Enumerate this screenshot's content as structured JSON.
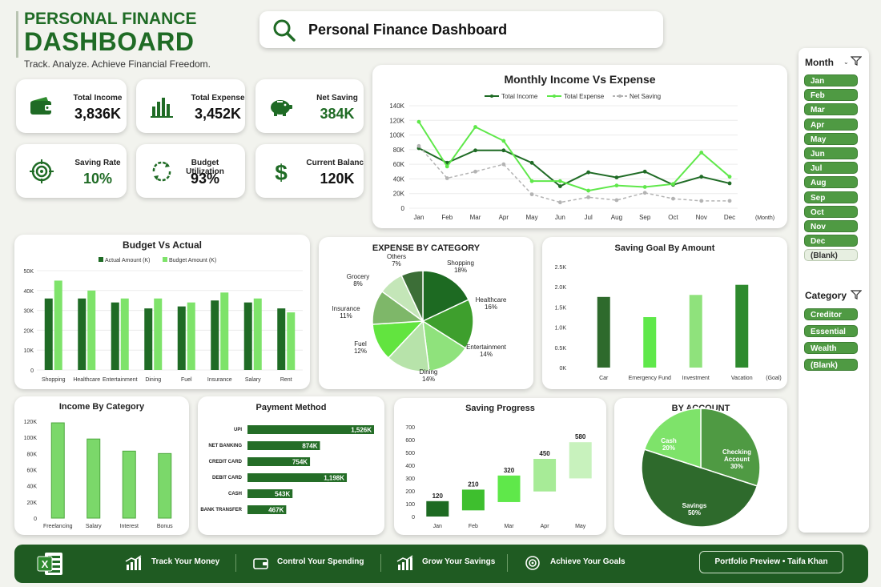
{
  "header": {
    "title_line1": "PERSONAL FINANCE",
    "title_line2": "DASHBOARD",
    "tagline": "Track. Analyze. Achieve Financial Freedom."
  },
  "search": {
    "text": "Personal Finance Dashboard",
    "icon": "search-icon"
  },
  "kpis": [
    {
      "label": "Total Income",
      "value": "3,836K",
      "icon": "wallet-icon"
    },
    {
      "label": "Total Expense",
      "value": "3,452K",
      "icon": "bar-chart-icon"
    },
    {
      "label": "Net Saving",
      "value": "384K",
      "icon": "piggy-bank-icon"
    },
    {
      "label": "Saving Rate",
      "value": "10%",
      "icon": "target-icon"
    },
    {
      "label": "Budget Utilization",
      "value": "93%",
      "icon": "refresh-icon"
    },
    {
      "label": "Current Balance",
      "value": "120K",
      "icon": "dollar-icon"
    }
  ],
  "colors": {
    "dark_green": "#1f6b25",
    "mid_green": "#3e9a36",
    "light_green": "#7ee36a",
    "bright_green": "#5fe84a",
    "grey": "#b3b3b3",
    "footer": "#1f5b22"
  },
  "chart_data": [
    {
      "id": "monthly",
      "type": "line",
      "title": "Monthly Income Vs Expense",
      "xlabel": "(Month)",
      "categories": [
        "Jan",
        "Feb",
        "Mar",
        "Apr",
        "May",
        "Jun",
        "Jul",
        "Aug",
        "Sep",
        "Oct",
        "Nov",
        "Dec"
      ],
      "ylim": [
        0,
        140
      ],
      "yticks": [
        "0",
        "20K",
        "40K",
        "60K",
        "80K",
        "100K",
        "120K",
        "140K"
      ],
      "series": [
        {
          "name": "Total Income",
          "values": [
            82,
            62,
            79,
            79,
            62,
            30,
            49,
            42,
            50,
            32,
            43,
            34
          ]
        },
        {
          "name": "Total Expense",
          "values": [
            118,
            57,
            111,
            92,
            37,
            37,
            24,
            31,
            29,
            33,
            76,
            43
          ]
        },
        {
          "name": "Net Saving",
          "values": [
            85,
            41,
            50,
            60,
            19,
            8,
            15,
            11,
            21,
            13,
            10,
            10
          ]
        }
      ],
      "legend": "top"
    },
    {
      "id": "budget",
      "type": "bar",
      "title": "Budget Vs Actual",
      "categories": [
        "Shopping",
        "Healthcare",
        "Entertainment",
        "Dining",
        "Fuel",
        "Insurance",
        "Salary",
        "Rent"
      ],
      "ylim": [
        0,
        50
      ],
      "yticks": [
        "0",
        "10K",
        "20K",
        "30K",
        "40K",
        "50K"
      ],
      "series": [
        {
          "name": "Actual Amount (K)",
          "values": [
            36,
            36,
            34,
            31,
            32,
            35,
            34,
            31
          ]
        },
        {
          "name": "Budget Amount (K)",
          "values": [
            45,
            40,
            36,
            36,
            34,
            39,
            36,
            29
          ]
        }
      ],
      "legend": "top"
    },
    {
      "id": "expense",
      "type": "pie",
      "title": "EXPENSE BY CATEGORY",
      "slices": [
        {
          "label": "Shopping",
          "pct": 18,
          "text": "18%"
        },
        {
          "label": "Healthcare",
          "pct": 16,
          "text": "16%"
        },
        {
          "label": "Entertainment",
          "pct": 14,
          "text": "14%"
        },
        {
          "label": "Dining",
          "pct": 14,
          "text": "14%"
        },
        {
          "label": "Fuel",
          "pct": 12,
          "text": "12%"
        },
        {
          "label": "Insurance",
          "pct": 11,
          "text": "11%"
        },
        {
          "label": "Grocery",
          "pct": 8,
          "text": "8%"
        },
        {
          "label": "Others",
          "pct": 7,
          "text": "7%"
        }
      ]
    },
    {
      "id": "goal",
      "type": "bar",
      "title": "Saving Goal By Amount",
      "xlabel": "(Goal)",
      "categories": [
        "Car",
        "Emergency Fund",
        "Investment",
        "Vacation"
      ],
      "values": [
        1.75,
        1.25,
        1.8,
        2.05
      ],
      "ylim": [
        0,
        2.5
      ],
      "yticks": [
        "0K",
        "0.5K",
        "1.0K",
        "1.5K",
        "2.0K",
        "2.5K"
      ]
    },
    {
      "id": "incomecat",
      "type": "bar",
      "title": "Income By Category",
      "categories": [
        "Freelancing",
        "Salary",
        "Interest",
        "Bonus"
      ],
      "values": [
        118,
        98,
        83,
        80
      ],
      "ylim": [
        0,
        120
      ],
      "yticks": [
        "0",
        "20K",
        "40K",
        "60K",
        "80K",
        "100K",
        "120K"
      ]
    },
    {
      "id": "payment",
      "type": "bar",
      "title": "Payment Method",
      "categories": [
        "UPI",
        "NET BANKING",
        "CREDIT CARD",
        "DEBIT CARD",
        "CASH",
        "BANK TRANSFER"
      ],
      "values": [
        1526,
        874,
        754,
        1198,
        543,
        467
      ],
      "labels": [
        "1,526K",
        "874K",
        "754K",
        "1,198K",
        "543K",
        "467K"
      ]
    },
    {
      "id": "progress",
      "type": "bar",
      "title": "Saving Progress",
      "categories": [
        "Jan",
        "Feb",
        "Mar",
        "Apr",
        "May"
      ],
      "values": [
        120,
        210,
        320,
        450,
        580
      ],
      "ylim": [
        0,
        700
      ],
      "yticks": [
        "0",
        "100",
        "200",
        "300",
        "400",
        "500",
        "600",
        "700"
      ]
    },
    {
      "id": "account",
      "type": "pie",
      "title": "BY ACCOUNT",
      "slices": [
        {
          "label": "Checking Account",
          "pct": 30,
          "text": "30%"
        },
        {
          "label": "Savings",
          "pct": 50,
          "text": "50%"
        },
        {
          "label": "Cash",
          "pct": 20,
          "text": "20%"
        }
      ]
    }
  ],
  "slicers": {
    "month": {
      "title": "Month",
      "items": [
        "Jan",
        "Feb",
        "Mar",
        "Apr",
        "May",
        "Jun",
        "Jul",
        "Aug",
        "Sep",
        "Oct",
        "Nov",
        "Dec",
        "(Blank)"
      ]
    },
    "category": {
      "title": "Category",
      "items": [
        "Creditor",
        "Essential",
        "Wealth",
        "(Blank)"
      ]
    }
  },
  "footer": {
    "items": [
      "Track Your Money",
      "Control Your Spending",
      "Grow Your Savings",
      "Achieve Your Goals"
    ],
    "portfolio": "Portfolio Preview • Taifa Khan"
  }
}
